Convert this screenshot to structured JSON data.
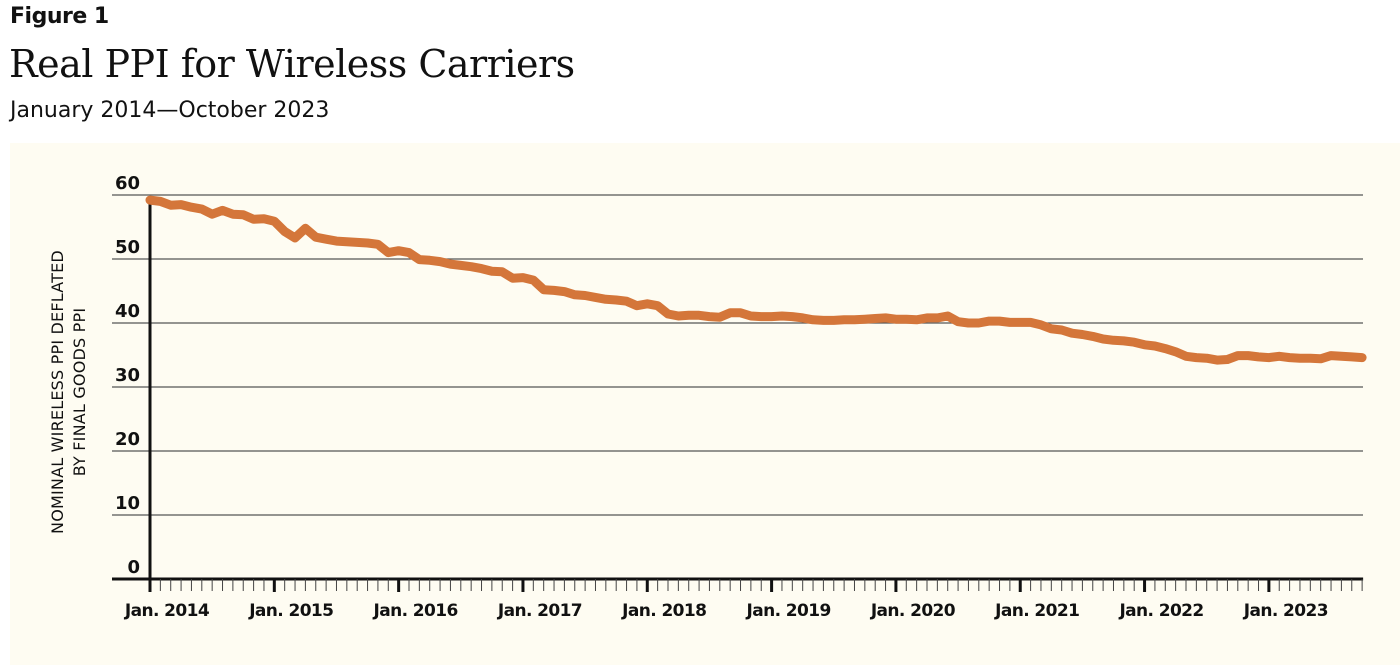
{
  "figure_label": "Figure 1",
  "title": "Real PPI for Wireless Carriers",
  "subtitle": "January 2014—October 2023",
  "colors": {
    "line": "#d4763a",
    "panel_background": "#fefcf2",
    "grid": "#555555",
    "axis": "#111111"
  },
  "chart_data": {
    "type": "line",
    "title": "Real PPI for Wireless Carriers",
    "subtitle": "January 2014—October 2023",
    "xlabel": "",
    "ylabel": [
      "NOMINAL WIRELESS PPI DEFLATED",
      "BY FINAL GOODS PPI"
    ],
    "ylim": [
      0,
      60
    ],
    "yticks": [
      0,
      10,
      20,
      30,
      40,
      50,
      60
    ],
    "grid": "horizontal",
    "legend": "none",
    "x_start": "Jan. 2014",
    "x_end": "Oct. 2023",
    "x_frequency": "monthly",
    "xtick_labels": [
      "Jan. 2014",
      "Jan. 2015",
      "Jan. 2016",
      "Jan. 2017",
      "Jan. 2018",
      "Jan. 2019",
      "Jan. 2020",
      "Jan. 2021",
      "Jan. 2022",
      "Jan. 2023"
    ],
    "series": [
      {
        "name": "Real PPI for Wireless Carriers",
        "values": [
          59.2,
          59.0,
          58.4,
          58.5,
          58.1,
          57.8,
          57.0,
          57.6,
          57.0,
          56.9,
          56.2,
          56.3,
          55.9,
          54.3,
          53.3,
          54.8,
          53.4,
          53.1,
          52.8,
          52.7,
          52.6,
          52.5,
          52.3,
          51.0,
          51.3,
          51.0,
          49.9,
          49.8,
          49.6,
          49.2,
          49.0,
          48.8,
          48.5,
          48.1,
          48.0,
          47.0,
          47.1,
          46.7,
          45.2,
          45.1,
          44.9,
          44.4,
          44.3,
          44.0,
          43.7,
          43.6,
          43.4,
          42.7,
          43.0,
          42.7,
          41.4,
          41.1,
          41.2,
          41.2,
          41.0,
          40.9,
          41.6,
          41.6,
          41.1,
          41.0,
          41.0,
          41.1,
          41.0,
          40.8,
          40.5,
          40.4,
          40.4,
          40.5,
          40.5,
          40.6,
          40.7,
          40.8,
          40.6,
          40.6,
          40.5,
          40.8,
          40.8,
          41.1,
          40.2,
          40.0,
          40.0,
          40.3,
          40.3,
          40.1,
          40.1,
          40.1,
          39.7,
          39.1,
          38.9,
          38.4,
          38.2,
          37.9,
          37.5,
          37.3,
          37.2,
          37.0,
          36.6,
          36.4,
          36.0,
          35.5,
          34.8,
          34.6,
          34.5,
          34.2,
          34.3,
          34.9,
          34.9,
          34.7,
          34.6,
          34.8,
          34.6,
          34.5,
          34.5,
          34.4,
          34.9,
          34.8,
          34.7,
          34.6
        ]
      }
    ]
  }
}
